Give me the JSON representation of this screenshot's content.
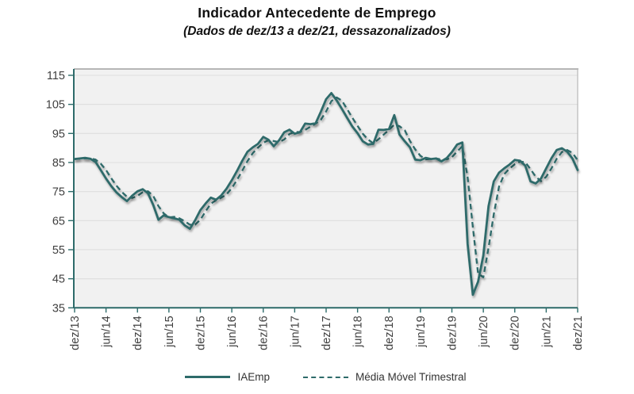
{
  "header": {
    "title": "Indicador Antecedente de Emprego",
    "subtitle": "(Dados de dez/13 a dez/21, dessazonalizados)"
  },
  "legend": {
    "items": [
      {
        "label": "IAEmp",
        "line_style": "solid"
      },
      {
        "label": "Média Móvel Trimestral",
        "line_style": "dashed"
      }
    ],
    "position": "bottom-center"
  },
  "colors": {
    "line": "#2E6B6A",
    "axis": "#2E6B6A",
    "plot_bg": "#F1F1F1",
    "gridline": "#DEDEDE",
    "frame_top": "#A0A0A0",
    "frame_right": "#B8B8B8",
    "tick_label": "#3F3F3F"
  },
  "chart_data": {
    "type": "line",
    "title": "Indicador Antecedente de Emprego",
    "subtitle": "(Dados de dez/13 a dez/21, dessazonalizados)",
    "x_unit": "month",
    "x_range": [
      "dez/13",
      "dez/21"
    ],
    "n_points": 97,
    "x_tick_labels": [
      "dez/13",
      "jun/14",
      "dez/14",
      "jun/15",
      "dez/15",
      "jun/16",
      "dez/16",
      "jun/17",
      "dez/17",
      "jun/18",
      "dez/18",
      "jun/19",
      "dez/19",
      "jun/20",
      "dez/20",
      "jun/21",
      "dez/21"
    ],
    "x_tick_every_months": 6,
    "y_ticks": [
      35,
      45,
      55,
      65,
      75,
      85,
      95,
      105,
      115
    ],
    "ylim": [
      35,
      115
    ],
    "grid": "horizontal",
    "legend_position": "bottom",
    "series": [
      {
        "name": "IAEmp",
        "line_style": "solid",
        "values": [
          86.2,
          86.4,
          86.6,
          86.3,
          85.2,
          82.4,
          79.5,
          76.9,
          74.7,
          73.1,
          71.7,
          73.6,
          75.1,
          75.8,
          74.4,
          70.4,
          65.3,
          66.8,
          66.2,
          65.8,
          65.3,
          63.4,
          62.2,
          65.1,
          68.6,
          70.9,
          72.9,
          72.2,
          73.7,
          76.0,
          78.9,
          82.1,
          85.6,
          88.7,
          90.2,
          91.4,
          93.8,
          92.8,
          90.6,
          92.6,
          95.4,
          96.3,
          94.9,
          95.4,
          98.4,
          98.2,
          98.5,
          102.5,
          106.8,
          108.9,
          106.4,
          103.5,
          100.4,
          97.4,
          95.1,
          92.3,
          91.2,
          91.4,
          96.3,
          96.2,
          96.5,
          101.3,
          94.6,
          92.3,
          90.2,
          86.0,
          85.8,
          86.6,
          86.2,
          86.4,
          85.4,
          86.5,
          88.6,
          91.2,
          91.9,
          57.0,
          39.5,
          44.0,
          53.0,
          70.0,
          78.5,
          81.5,
          83.0,
          84.3,
          85.9,
          85.6,
          83.9,
          78.5,
          77.8,
          79.5,
          83.0,
          86.5,
          89.3,
          89.9,
          88.7,
          86.4,
          82.4
        ]
      },
      {
        "name": "Média Móvel Trimestral",
        "line_style": "dashed",
        "derivation": "trailing 3-month moving average of IAEmp",
        "values": [
          86.2,
          86.3,
          86.4,
          86.4,
          86.0,
          84.6,
          82.4,
          79.6,
          77.0,
          74.9,
          73.2,
          72.8,
          73.5,
          74.8,
          75.1,
          73.5,
          70.0,
          67.5,
          66.1,
          66.3,
          65.8,
          64.8,
          63.6,
          63.6,
          65.3,
          68.2,
          70.8,
          72.0,
          72.9,
          74.0,
          76.2,
          79.0,
          82.2,
          85.5,
          88.2,
          90.1,
          91.8,
          92.7,
          92.4,
          92.0,
          92.9,
          94.8,
          95.5,
          95.5,
          96.2,
          97.3,
          98.4,
          99.7,
          102.6,
          106.1,
          107.4,
          106.3,
          103.4,
          100.4,
          97.6,
          94.9,
          92.9,
          91.6,
          93.0,
          94.6,
          96.3,
          98.0,
          97.5,
          96.1,
          92.4,
          89.5,
          87.3,
          86.1,
          86.2,
          86.4,
          86.0,
          86.1,
          86.8,
          88.8,
          90.6,
          80.0,
          62.8,
          46.8,
          45.5,
          55.7,
          67.2,
          76.7,
          81.0,
          82.9,
          84.4,
          85.3,
          85.1,
          82.7,
          80.1,
          78.6,
          80.1,
          83.0,
          86.3,
          88.6,
          89.3,
          88.3,
          85.8
        ]
      }
    ]
  }
}
